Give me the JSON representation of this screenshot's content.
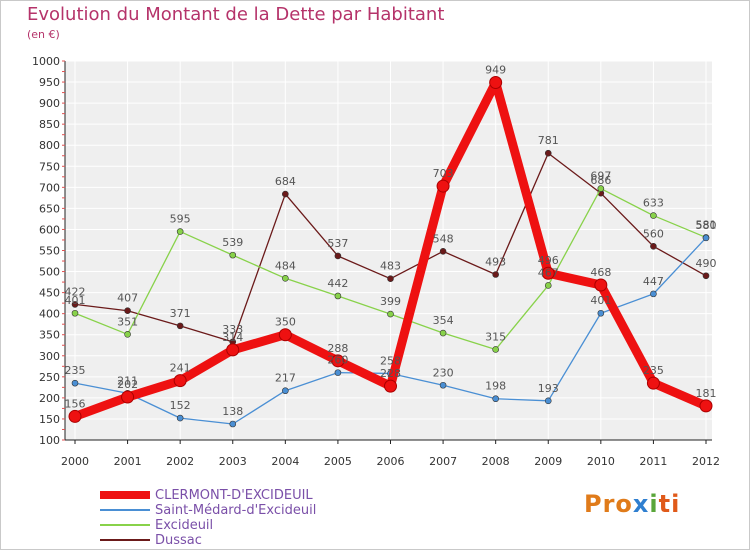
{
  "chart_data": {
    "type": "line",
    "title": "Evolution du Montant de la Dette par Habitant",
    "subtitle": "(en €)",
    "x": [
      "2000",
      "2001",
      "2002",
      "2003",
      "2004",
      "2005",
      "2006",
      "2007",
      "2008",
      "2009",
      "2010",
      "2011",
      "2012"
    ],
    "ylim": [
      100,
      1000
    ],
    "yticks": [
      100,
      150,
      200,
      250,
      300,
      350,
      400,
      450,
      500,
      550,
      600,
      650,
      700,
      750,
      800,
      850,
      900,
      950,
      1000
    ],
    "grid": true,
    "legend_position": "bottom-left",
    "series": [
      {
        "name": "CLERMONT-D'EXCIDEUIL",
        "color": "#ee1111",
        "values": [
          156,
          202,
          241,
          314,
          350,
          288,
          228,
          703,
          949,
          496,
          468,
          235,
          181
        ]
      },
      {
        "name": "Saint-Médard-d'Excideuil",
        "color": "#4a8fd4",
        "values": [
          235,
          211,
          152,
          138,
          217,
          260,
          258,
          230,
          198,
          193,
          401,
          447,
          580
        ]
      },
      {
        "name": "Excideuil",
        "color": "#88d24a",
        "values": [
          401,
          351,
          595,
          539,
          484,
          442,
          399,
          354,
          315,
          467,
          697,
          633,
          581
        ]
      },
      {
        "name": "Dussac",
        "color": "#6b1a1a",
        "values": [
          422,
          407,
          371,
          333,
          684,
          537,
          483,
          548,
          493,
          781,
          686,
          560,
          490
        ]
      }
    ]
  },
  "logo": {
    "text": "Proxiti",
    "letters": [
      "Pro",
      "x",
      "i",
      "ti"
    ]
  }
}
